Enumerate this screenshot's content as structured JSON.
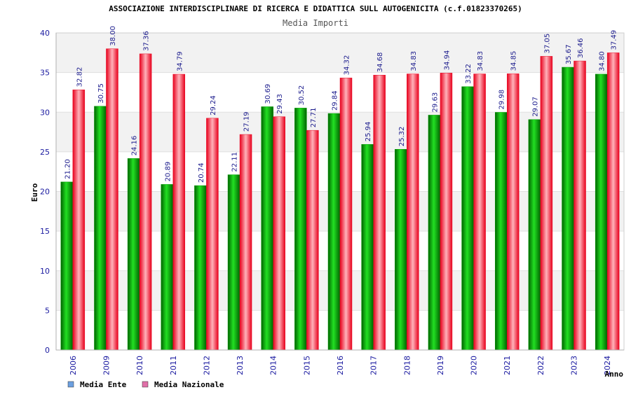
{
  "chart_data": {
    "type": "bar",
    "title": "ASSOCIAZIONE INTERDISCIPLINARE DI RICERCA E DIDATTICA SULL AUTOGENICITA (c.f.01823370265)",
    "subtitle": "Media Importi",
    "xlabel": "Anno",
    "ylabel": "Euro",
    "ylim": [
      0,
      40
    ],
    "yticks": [
      0,
      5,
      10,
      15,
      20,
      25,
      30,
      35,
      40
    ],
    "grid": true,
    "legend_position": "bottom-left",
    "categories": [
      "2006",
      "2009",
      "2010",
      "2011",
      "2012",
      "2013",
      "2014",
      "2015",
      "2016",
      "2017",
      "2018",
      "2019",
      "2020",
      "2021",
      "2022",
      "2023",
      "2024"
    ],
    "series": [
      {
        "name": "Media Ente",
        "color": "#00a000",
        "legend_color": "#6ca0e0",
        "values": [
          21.2,
          30.75,
          24.16,
          20.89,
          20.74,
          22.11,
          30.69,
          30.52,
          29.84,
          25.94,
          25.32,
          29.63,
          33.22,
          29.98,
          29.07,
          35.67,
          34.8
        ],
        "labels": [
          "21.20",
          "30.75",
          "24.16",
          "20.89",
          "20.74",
          "22.11",
          "30.69",
          "30.52",
          "29.84",
          "25.94",
          "25.32",
          "29.63",
          "33.22",
          "29.98",
          "29.07",
          "35.67",
          "34.80"
        ]
      },
      {
        "name": "Media Nazionale",
        "color": "#e8102a",
        "legend_color": "#e070a8",
        "values": [
          32.82,
          38.0,
          37.36,
          34.79,
          29.24,
          27.19,
          29.43,
          27.71,
          34.32,
          34.68,
          34.83,
          34.94,
          34.83,
          34.85,
          37.05,
          36.46,
          37.49
        ],
        "labels": [
          "32.82",
          "38.00",
          "37.36",
          "34.79",
          "29.24",
          "27.19",
          "29.43",
          "27.71",
          "34.32",
          "34.68",
          "34.83",
          "34.94",
          "34.83",
          "34.85",
          "37.05",
          "36.46",
          "37.49"
        ]
      }
    ]
  }
}
